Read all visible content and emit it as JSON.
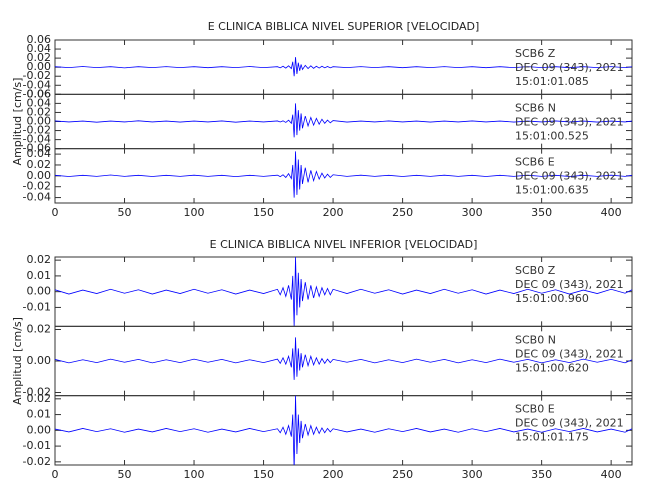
{
  "chart_data": [
    {
      "type": "line",
      "title": "E CLINICA BIBLICA NIVEL SUPERIOR [VELOCIDAD]",
      "y_label": "Amplitud [cm/s]",
      "xlim": [
        0,
        415
      ],
      "xticks": [
        0,
        50,
        100,
        150,
        200,
        250,
        300,
        350,
        400
      ],
      "color": "#0000ff",
      "x": [
        0,
        10,
        20,
        30,
        40,
        50,
        60,
        70,
        80,
        90,
        100,
        110,
        120,
        130,
        140,
        150,
        160,
        162,
        164,
        166,
        168,
        170,
        171,
        172,
        173,
        174,
        175,
        176,
        177,
        178,
        180,
        182,
        184,
        186,
        188,
        190,
        192,
        194,
        196,
        198,
        200,
        210,
        220,
        230,
        240,
        250,
        260,
        270,
        280,
        290,
        300,
        310,
        320,
        330,
        340,
        350,
        360,
        370,
        380,
        390,
        400,
        410,
        415
      ],
      "panels": [
        {
          "label": "SCB6   Z",
          "date": "DEC 09 (343), 2021",
          "time": "15:01:01.085",
          "ylim": [
            -0.06,
            0.06
          ],
          "yticks": [
            0.06,
            0.04,
            0.02,
            {
              "value": 0,
              "label": "0.00"
            },
            -0.02,
            -0.04,
            -0.06
          ],
          "values": [
            0.001,
            -0.001,
            0.0015,
            -0.001,
            0.001,
            -0.0015,
            0.001,
            -0.001,
            0.0012,
            -0.001,
            0.001,
            -0.0012,
            0.001,
            -0.001,
            0.0015,
            -0.001,
            0.001,
            -0.0015,
            0.002,
            -0.002,
            0.003,
            -0.003,
            0.012,
            -0.02,
            0.022,
            -0.015,
            0.01,
            -0.008,
            0.006,
            -0.005,
            0.004,
            -0.003,
            0.003,
            -0.0025,
            0.002,
            -0.002,
            0.002,
            -0.0015,
            0.0015,
            -0.0015,
            0.001,
            -0.001,
            0.0012,
            -0.001,
            0.001,
            -0.0012,
            0.001,
            -0.001,
            0.0012,
            -0.001,
            0.001,
            -0.0012,
            0.001,
            -0.001,
            0.0012,
            -0.001,
            0.001,
            -0.0012,
            0.001,
            -0.001,
            0.0012,
            -0.001,
            0.001
          ]
        },
        {
          "label": "SCB6   N",
          "date": "DEC 09 (343), 2021",
          "time": "15:01:00.525",
          "ylim": [
            -0.06,
            0.06
          ],
          "yticks": [
            0.06,
            0.04,
            0.02,
            {
              "value": 0,
              "label": "0.00"
            },
            -0.02,
            -0.04,
            -0.06
          ],
          "values": [
            0.0012,
            -0.001,
            0.001,
            -0.0015,
            0.001,
            -0.001,
            0.0015,
            -0.001,
            0.001,
            -0.0012,
            0.001,
            -0.001,
            0.0012,
            -0.0015,
            0.001,
            -0.001,
            0.0012,
            -0.001,
            0.0015,
            -0.002,
            0.003,
            -0.004,
            0.015,
            -0.035,
            0.04,
            -0.03,
            0.025,
            -0.02,
            0.018,
            -0.015,
            0.012,
            -0.01,
            0.009,
            -0.008,
            0.007,
            -0.006,
            0.005,
            -0.004,
            0.003,
            -0.003,
            0.002,
            -0.0012,
            0.001,
            -0.001,
            0.0012,
            -0.001,
            0.001,
            -0.0012,
            0.001,
            -0.001,
            0.0012,
            -0.001,
            0.001,
            -0.0012,
            0.001,
            -0.001,
            0.0012,
            -0.001,
            0.001,
            -0.0012,
            0.001,
            -0.001,
            0.001
          ]
        },
        {
          "label": "SCB6   E",
          "date": "DEC 09 (343), 2021",
          "time": "15:01:00.635",
          "ylim": [
            -0.05,
            0.05
          ],
          "yticks": [
            0.04,
            0.02,
            {
              "value": 0,
              "label": "0.00"
            },
            -0.02,
            -0.04
          ],
          "values": [
            0.001,
            -0.0012,
            0.001,
            -0.001,
            0.0015,
            -0.001,
            0.001,
            -0.0012,
            0.001,
            -0.001,
            0.0012,
            -0.001,
            0.001,
            -0.0015,
            0.001,
            -0.001,
            0.0012,
            -0.0015,
            0.002,
            -0.003,
            0.004,
            -0.005,
            0.02,
            -0.04,
            0.045,
            -0.035,
            0.03,
            -0.025,
            0.02,
            -0.015,
            0.015,
            -0.012,
            0.01,
            -0.009,
            0.008,
            -0.006,
            0.005,
            -0.004,
            0.003,
            -0.003,
            0.002,
            -0.001,
            0.0012,
            -0.001,
            0.001,
            -0.0012,
            0.001,
            -0.001,
            0.0012,
            -0.001,
            0.001,
            -0.0012,
            0.001,
            -0.001,
            0.0012,
            -0.001,
            0.001,
            -0.0012,
            0.001,
            -0.001,
            0.0012,
            -0.001,
            0.001
          ]
        }
      ]
    },
    {
      "type": "line",
      "title": "E CLINICA BIBLICA NIVEL INFERIOR [VELOCIDAD]",
      "y_label": "Amplitud [cm/s]",
      "xlim": [
        0,
        415
      ],
      "xticks": [
        0,
        50,
        100,
        150,
        200,
        250,
        300,
        350,
        400
      ],
      "color": "#0000ff",
      "x": [
        0,
        10,
        20,
        30,
        40,
        50,
        60,
        70,
        80,
        90,
        100,
        110,
        120,
        130,
        140,
        150,
        160,
        162,
        164,
        166,
        168,
        170,
        171,
        172,
        173,
        174,
        175,
        176,
        177,
        178,
        180,
        182,
        184,
        186,
        188,
        190,
        192,
        194,
        196,
        198,
        200,
        210,
        220,
        230,
        240,
        250,
        260,
        270,
        280,
        290,
        300,
        310,
        320,
        330,
        340,
        350,
        360,
        370,
        380,
        390,
        400,
        410,
        415
      ],
      "panels": [
        {
          "label": "SCB0   Z",
          "date": "DEC 09 (343), 2021",
          "time": "15:01:00.960",
          "ylim": [
            -0.022,
            0.022
          ],
          "yticks": [
            0.02,
            0.01,
            {
              "value": 0,
              "label": "0.00"
            },
            -0.01
          ],
          "values": [
            0.0012,
            -0.0015,
            0.001,
            -0.0012,
            0.0015,
            -0.001,
            0.0012,
            -0.0015,
            0.001,
            -0.0012,
            0.0015,
            -0.001,
            0.0012,
            -0.0015,
            0.001,
            -0.0012,
            0.0015,
            -0.002,
            0.0025,
            -0.003,
            0.004,
            -0.005,
            0.01,
            -0.022,
            0.022,
            -0.015,
            0.012,
            -0.01,
            0.008,
            -0.006,
            0.006,
            -0.005,
            0.004,
            -0.004,
            0.003,
            -0.003,
            0.0025,
            -0.002,
            0.002,
            -0.002,
            0.0015,
            -0.0012,
            0.0015,
            -0.001,
            0.0012,
            -0.0015,
            0.001,
            -0.0012,
            0.0015,
            -0.001,
            0.0012,
            -0.0015,
            0.001,
            -0.0012,
            0.0015,
            -0.001,
            0.0012,
            -0.0015,
            0.001,
            -0.0012,
            0.0015,
            -0.001,
            0.0012
          ]
        },
        {
          "label": "SCB0   N",
          "date": "DEC 09 (343), 2021",
          "time": "15:01:00.620",
          "ylim": [
            -0.022,
            0.022
          ],
          "yticks": [
            0.02,
            {
              "value": 0,
              "label": "0.00"
            },
            -0.02
          ],
          "values": [
            0.001,
            -0.0012,
            0.0008,
            -0.001,
            0.0012,
            -0.0008,
            0.001,
            -0.0012,
            0.0008,
            -0.001,
            0.0012,
            -0.0008,
            0.001,
            -0.0012,
            0.0008,
            -0.001,
            0.0012,
            -0.0015,
            0.002,
            -0.002,
            0.003,
            -0.004,
            0.008,
            -0.012,
            0.015,
            -0.01,
            0.008,
            -0.006,
            0.005,
            -0.004,
            0.004,
            -0.003,
            0.003,
            -0.0025,
            0.002,
            -0.002,
            0.0015,
            -0.0015,
            0.0012,
            -0.001,
            0.001,
            -0.0008,
            0.001,
            -0.0012,
            0.0008,
            -0.001,
            0.0012,
            -0.0008,
            0.001,
            -0.0012,
            0.0008,
            -0.001,
            0.0012,
            -0.0008,
            0.001,
            -0.0012,
            0.0008,
            -0.001,
            0.0012,
            -0.0008,
            0.001,
            -0.0012,
            0.0008
          ]
        },
        {
          "label": "SCB0   E",
          "date": "DEC 09 (343), 2021",
          "time": "15:01:01.175",
          "ylim": [
            -0.022,
            0.022
          ],
          "yticks": [
            0.02,
            0.01,
            {
              "value": 0,
              "label": "0.00"
            },
            -0.01,
            -0.02
          ],
          "values": [
            0.0008,
            -0.001,
            0.0012,
            -0.0008,
            0.001,
            -0.0012,
            0.0008,
            -0.001,
            0.0012,
            -0.0008,
            0.001,
            -0.0012,
            0.0008,
            -0.001,
            0.0012,
            -0.0008,
            0.001,
            -0.0015,
            0.002,
            -0.0025,
            0.003,
            -0.004,
            0.01,
            -0.025,
            0.022,
            -0.015,
            0.01,
            -0.008,
            0.006,
            -0.005,
            0.004,
            -0.003,
            0.003,
            -0.0025,
            0.002,
            -0.002,
            0.0015,
            -0.0015,
            0.0012,
            -0.001,
            0.001,
            -0.001,
            0.0008,
            -0.0012,
            0.001,
            -0.0008,
            0.0012,
            -0.001,
            0.0008,
            -0.0012,
            0.001,
            -0.0008,
            0.0012,
            -0.001,
            0.0008,
            -0.0012,
            0.001,
            -0.0008,
            0.0012,
            -0.001,
            0.0008,
            -0.0012,
            0.001
          ]
        }
      ]
    }
  ]
}
